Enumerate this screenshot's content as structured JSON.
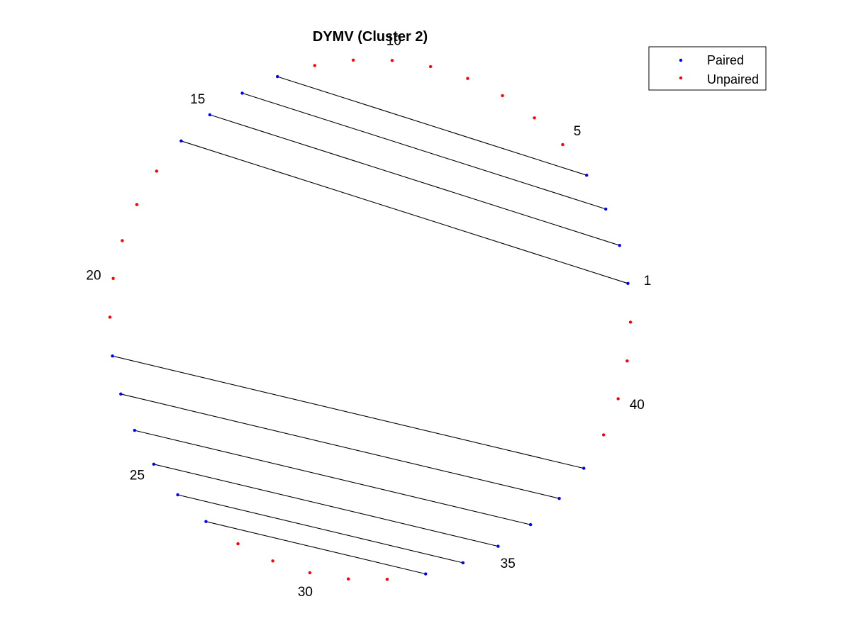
{
  "title": "DYMV (Cluster 2)",
  "legend": {
    "position": "top-right",
    "entries": [
      {
        "label": "Paired",
        "color": "#0000ff"
      },
      {
        "label": "Unpaired",
        "color": "#ff0000"
      }
    ]
  },
  "colors": {
    "paired": "#0000ff",
    "unpaired": "#ff0000",
    "bond": "#000000"
  },
  "chart_data": {
    "type": "arc-diagram-circular",
    "node_count": 42,
    "start_node": 1,
    "direction": "counterclockwise",
    "tick_labels": [
      "1",
      "5",
      "10",
      "15",
      "20",
      "25",
      "30",
      "35",
      "40"
    ],
    "labeled_positions": [
      1,
      5,
      10,
      15,
      20,
      25,
      30,
      35,
      40
    ],
    "pairs": [
      [
        1,
        16
      ],
      [
        2,
        15
      ],
      [
        3,
        14
      ],
      [
        4,
        13
      ],
      [
        22,
        38
      ],
      [
        23,
        37
      ],
      [
        24,
        36
      ],
      [
        25,
        35
      ],
      [
        26,
        34
      ],
      [
        27,
        33
      ]
    ],
    "unpaired_nodes": [
      5,
      6,
      7,
      8,
      9,
      10,
      11,
      12,
      17,
      18,
      19,
      20,
      21,
      28,
      29,
      30,
      31,
      32,
      39,
      40,
      41,
      42
    ],
    "grid": false,
    "axes_visible": false
  }
}
